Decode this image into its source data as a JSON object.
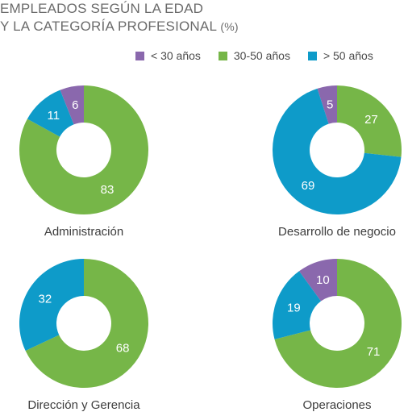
{
  "chart_data": {
    "type": "pie",
    "title_line1": "EMPLEADOS SEGÚN LA EDAD",
    "title_line2": "Y LA CATEGORÍA PROFESIONAL",
    "title_unit": "(%)",
    "legend": [
      {
        "label": "< 30 años",
        "color": "#8a68ad"
      },
      {
        "label": "30-50 años",
        "color": "#76b648"
      },
      {
        "label": "> 50 años",
        "color": "#0e9bc9"
      }
    ],
    "charts": [
      {
        "name": "Administración",
        "slices": [
          {
            "series": "< 30 años",
            "value": 6
          },
          {
            "series": "30-50 años",
            "value": 83
          },
          {
            "series": "> 50 años",
            "value": 11
          }
        ]
      },
      {
        "name": "Desarrollo de negocio",
        "slices": [
          {
            "series": "< 30 años",
            "value": 5
          },
          {
            "series": "30-50 años",
            "value": 27
          },
          {
            "series": "> 50 años",
            "value": 69
          }
        ]
      },
      {
        "name": "Dirección y Gerencia",
        "slices": [
          {
            "series": "< 30 años",
            "value": 0
          },
          {
            "series": "30-50 años",
            "value": 68
          },
          {
            "series": "> 50 años",
            "value": 32
          }
        ]
      },
      {
        "name": "Operaciones",
        "slices": [
          {
            "series": "< 30 años",
            "value": 10
          },
          {
            "series": "30-50 años",
            "value": 71
          },
          {
            "series": "> 50 años",
            "value": 19
          }
        ]
      }
    ]
  }
}
